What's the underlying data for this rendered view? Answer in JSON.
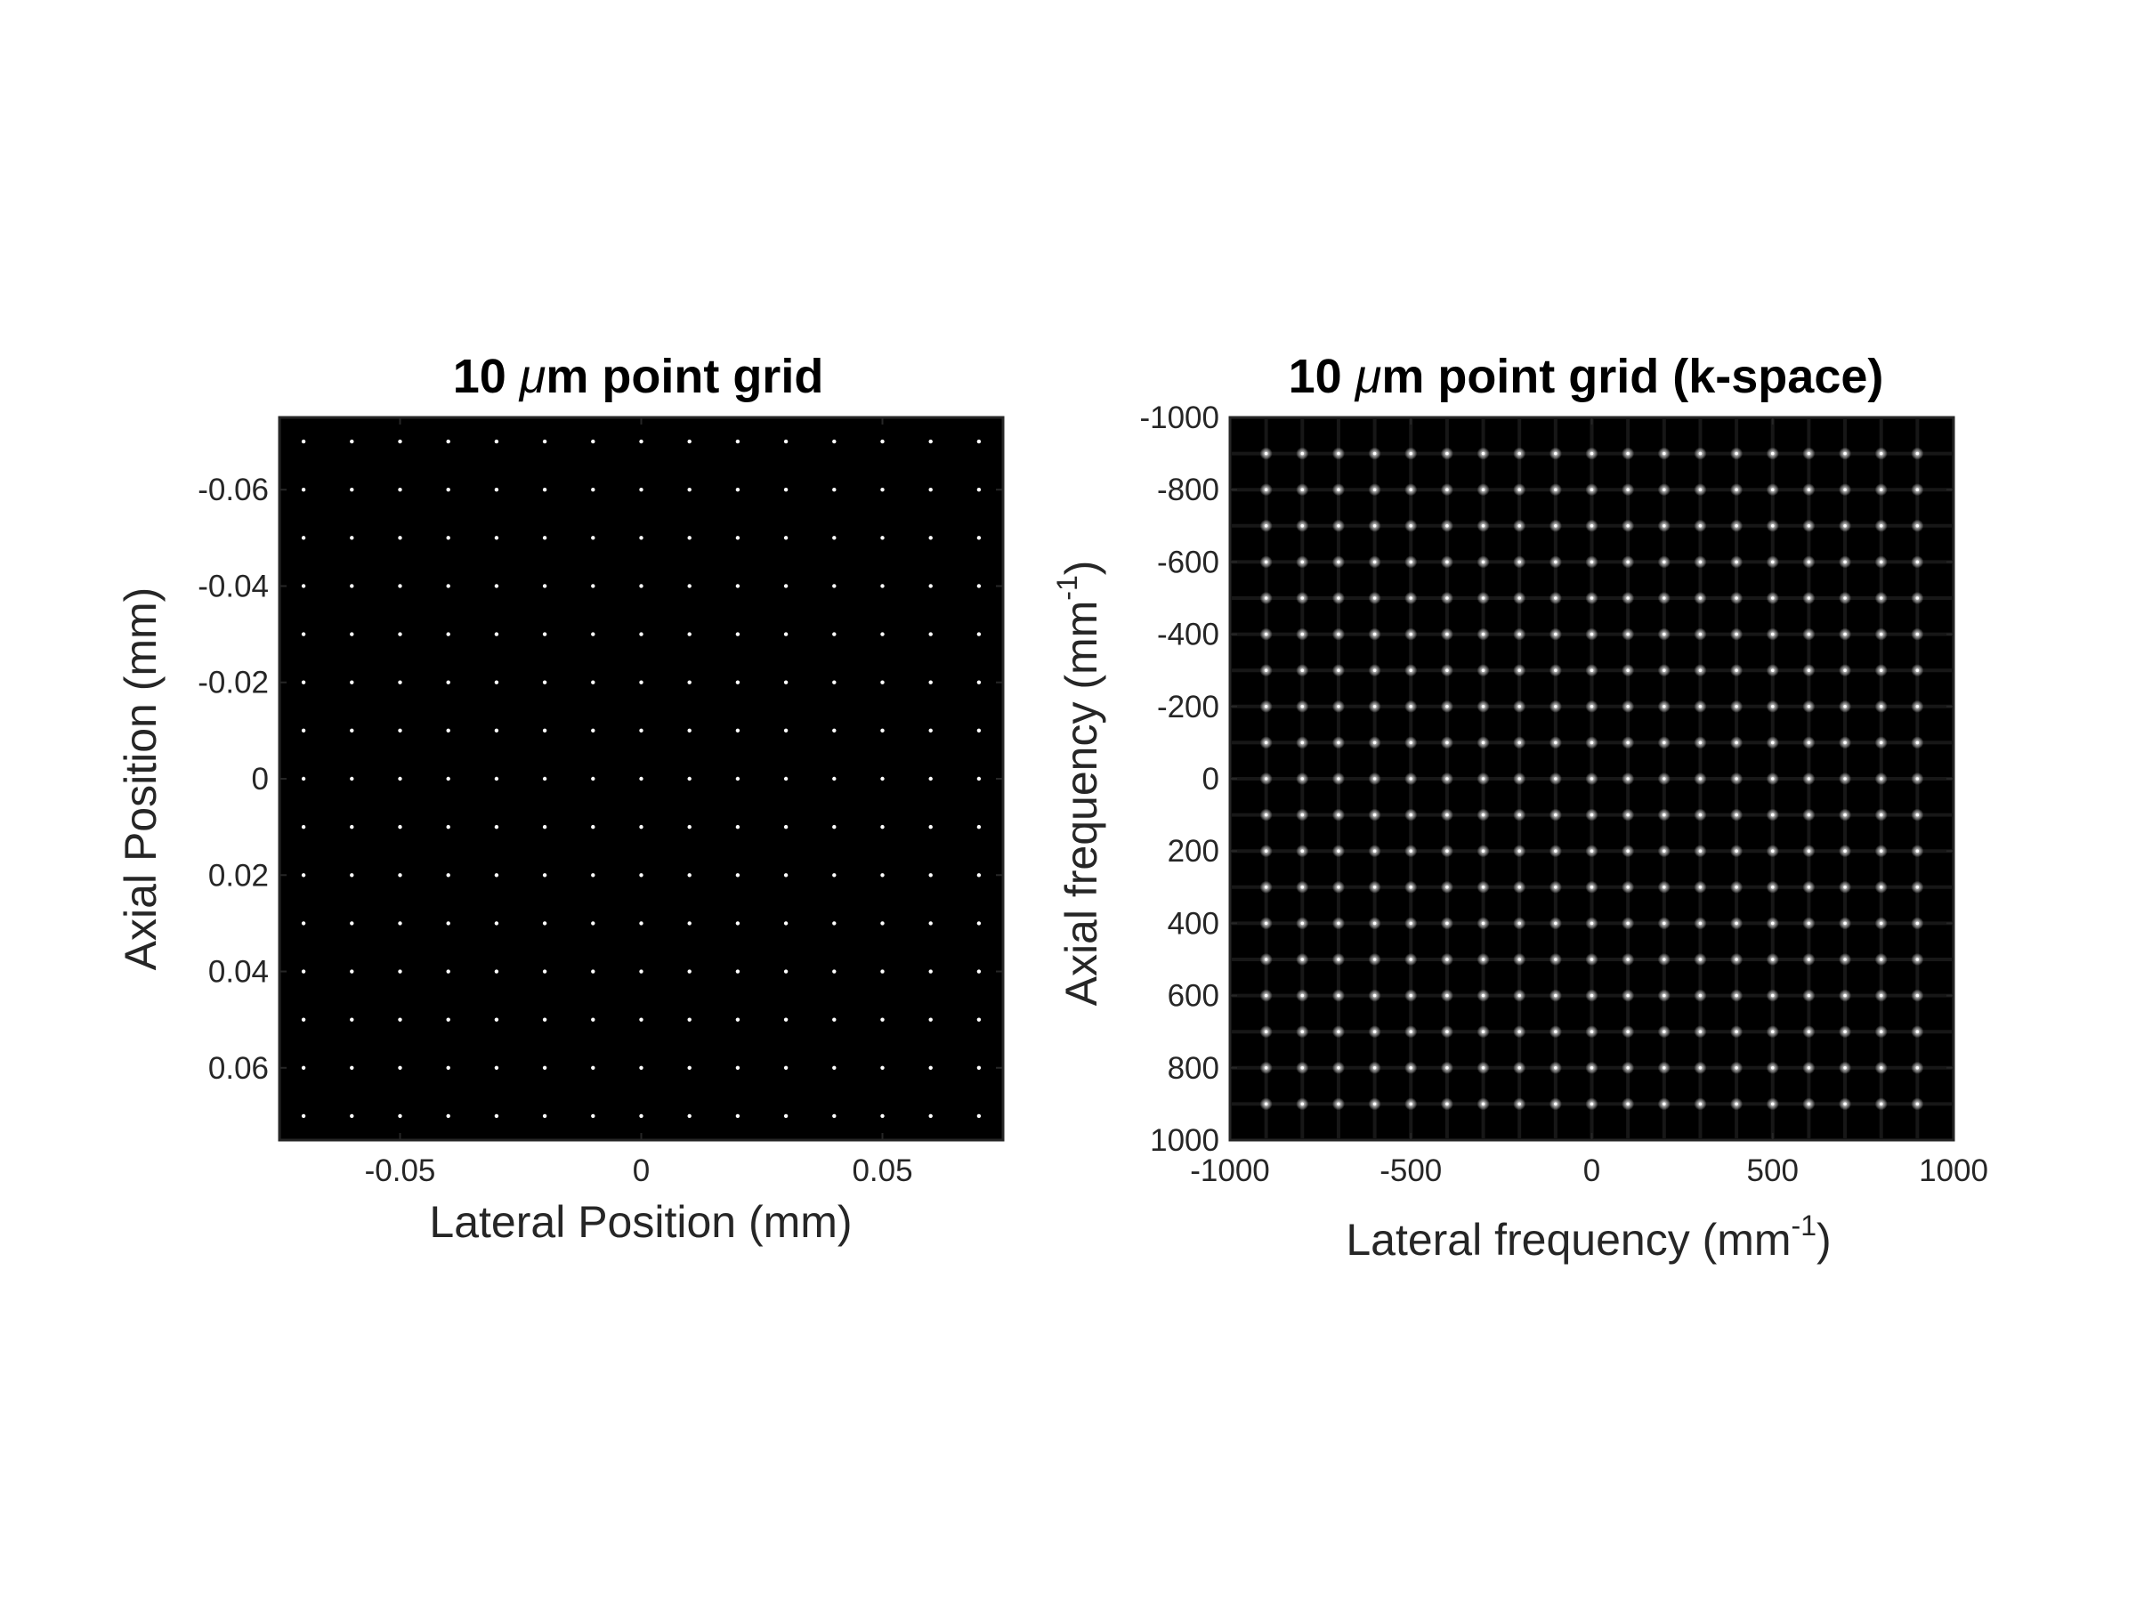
{
  "chart_data": [
    {
      "type": "heatmap",
      "title": "10 μm point grid",
      "title_parts": [
        "10 ",
        "μ",
        "m point grid"
      ],
      "xlabel": "Lateral Position (mm)",
      "ylabel": "Axial Position (mm)",
      "xlim": [
        -0.075,
        0.075
      ],
      "ylim": [
        -0.075,
        0.075
      ],
      "y_reversed": true,
      "xticks": [
        -0.05,
        0,
        0.05
      ],
      "xtick_labels": [
        "-0.05",
        "0",
        "0.05"
      ],
      "yticks": [
        -0.06,
        -0.04,
        -0.02,
        0,
        0.02,
        0.04,
        0.06
      ],
      "ytick_labels": [
        "-0.06",
        "-0.04",
        "-0.02",
        "0",
        "0.02",
        "0.04",
        "0.06"
      ],
      "grid": false,
      "colormap": "gray",
      "background": "#000000",
      "point_color": "#ffffff",
      "points_x": [
        -0.07,
        -0.06,
        -0.05,
        -0.04,
        -0.03,
        -0.02,
        -0.01,
        0,
        0.01,
        0.02,
        0.03,
        0.04,
        0.05,
        0.06,
        0.07
      ],
      "points_y": [
        -0.07,
        -0.06,
        -0.05,
        -0.04,
        -0.03,
        -0.02,
        -0.01,
        0,
        0.01,
        0.02,
        0.03,
        0.04,
        0.05,
        0.06,
        0.07
      ],
      "point_spacing_um": 10
    },
    {
      "type": "heatmap",
      "title": "10 μm point grid (k-space)",
      "title_parts": [
        "10 ",
        "μ",
        "m point grid (k-space)"
      ],
      "xlabel": "Lateral frequency (mm-1)",
      "xlabel_parts": [
        "Lateral frequency (mm",
        "-1",
        ")"
      ],
      "ylabel": "Axial frequency (mm-1)",
      "ylabel_parts": [
        "Axial frequency (mm",
        "-1",
        ")"
      ],
      "xlim": [
        -1000,
        1000
      ],
      "ylim": [
        -1000,
        1000
      ],
      "y_reversed": true,
      "xticks": [
        -1000,
        -500,
        0,
        500,
        1000
      ],
      "xtick_labels": [
        "-1000",
        "-500",
        "0",
        "500",
        "1000"
      ],
      "yticks": [
        -1000,
        -800,
        -600,
        -400,
        -200,
        0,
        200,
        400,
        600,
        800,
        1000
      ],
      "ytick_labels": [
        "-1000",
        "-800",
        "-600",
        "-400",
        "-200",
        "0",
        "200",
        "400",
        "600",
        "800",
        "1000"
      ],
      "grid": false,
      "colormap": "gray",
      "background": "#000000",
      "peak_color": "#ffffff",
      "peak_spacing_per_mm": 100,
      "peaks_x": [
        -900,
        -800,
        -700,
        -600,
        -500,
        -400,
        -300,
        -200,
        -100,
        0,
        100,
        200,
        300,
        400,
        500,
        600,
        700,
        800,
        900
      ],
      "peaks_y": [
        -900,
        -800,
        -700,
        -600,
        -500,
        -400,
        -300,
        -200,
        -100,
        0,
        100,
        200,
        300,
        400,
        500,
        600,
        700,
        800,
        900
      ]
    }
  ]
}
